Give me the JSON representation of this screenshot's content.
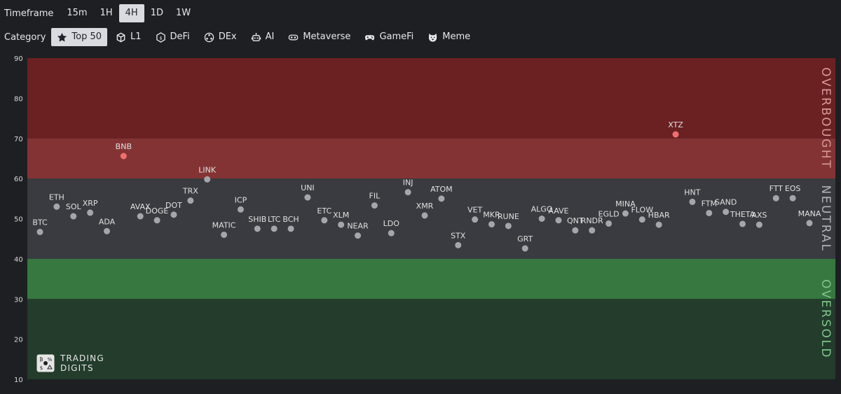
{
  "toolbar": {
    "timeframe_label": "Timeframe",
    "timeframes": [
      "15m",
      "1H",
      "4H",
      "1D",
      "1W"
    ],
    "active_timeframe": "4H",
    "category_label": "Category",
    "categories": [
      {
        "label": "Top 50",
        "icon": "star-icon",
        "active": true
      },
      {
        "label": "L1",
        "icon": "cube-icon",
        "active": false
      },
      {
        "label": "DeFi",
        "icon": "defi-icon",
        "active": false
      },
      {
        "label": "DEx",
        "icon": "dex-icon",
        "active": false
      },
      {
        "label": "AI",
        "icon": "robot-icon",
        "active": false
      },
      {
        "label": "Metaverse",
        "icon": "vr-headset-icon",
        "active": false
      },
      {
        "label": "GameFi",
        "icon": "gamepad-icon",
        "active": false
      },
      {
        "label": "Meme",
        "icon": "doge-icon",
        "active": false
      }
    ]
  },
  "logo": {
    "line1": "TRADING",
    "line2": "DIGITS"
  },
  "colors": {
    "overbought_strong": "#6b2022",
    "overbought_light": "#843334",
    "neutral": "#393b40",
    "oversold_light": "#367840",
    "oversold_strong": "#233c2c",
    "dot_neutral": "#a5a6ab",
    "dot_overbought": "#f07070"
  },
  "chart_data": {
    "type": "scatter",
    "ylim": [
      10,
      90
    ],
    "yticks": [
      90,
      80,
      70,
      60,
      50,
      40,
      30,
      20,
      10
    ],
    "zones": [
      {
        "label": "OVERBOUGHT",
        "from": 60,
        "to": 90
      },
      {
        "label": "NEUTRAL",
        "from": 40,
        "to": 60
      },
      {
        "label": "OVERSOLD",
        "from": 10,
        "to": 40
      }
    ],
    "points": [
      {
        "name": "BTC",
        "y": 46.7
      },
      {
        "name": "ETH",
        "y": 53.0
      },
      {
        "name": "SOL",
        "y": 50.6
      },
      {
        "name": "XRP",
        "y": 51.5
      },
      {
        "name": "ADA",
        "y": 46.9
      },
      {
        "name": "BNB",
        "y": 65.6
      },
      {
        "name": "AVAX",
        "y": 50.6
      },
      {
        "name": "DOGE",
        "y": 49.6
      },
      {
        "name": "DOT",
        "y": 51.0
      },
      {
        "name": "TRX",
        "y": 54.5
      },
      {
        "name": "LINK",
        "y": 59.8
      },
      {
        "name": "MATIC",
        "y": 46.0
      },
      {
        "name": "ICP",
        "y": 52.3
      },
      {
        "name": "SHIB",
        "y": 47.5
      },
      {
        "name": "LTC",
        "y": 47.5
      },
      {
        "name": "BCH",
        "y": 47.5
      },
      {
        "name": "UNI",
        "y": 55.3
      },
      {
        "name": "ETC",
        "y": 49.6
      },
      {
        "name": "XLM",
        "y": 48.5
      },
      {
        "name": "NEAR",
        "y": 45.8
      },
      {
        "name": "FIL",
        "y": 53.3
      },
      {
        "name": "LDO",
        "y": 46.4
      },
      {
        "name": "INJ",
        "y": 56.6
      },
      {
        "name": "XMR",
        "y": 50.8
      },
      {
        "name": "ATOM",
        "y": 55.0
      },
      {
        "name": "STX",
        "y": 43.4
      },
      {
        "name": "VET",
        "y": 49.8
      },
      {
        "name": "MKR",
        "y": 48.6
      },
      {
        "name": "RUNE",
        "y": 48.2
      },
      {
        "name": "GRT",
        "y": 42.6
      },
      {
        "name": "ALGO",
        "y": 50.0
      },
      {
        "name": "AAVE",
        "y": 49.6
      },
      {
        "name": "QNT",
        "y": 47.1
      },
      {
        "name": "RNDR",
        "y": 47.1
      },
      {
        "name": "EGLD",
        "y": 48.8
      },
      {
        "name": "MINA",
        "y": 51.3
      },
      {
        "name": "FLOW",
        "y": 49.8
      },
      {
        "name": "HBAR",
        "y": 48.5
      },
      {
        "name": "XTZ",
        "y": 71.0
      },
      {
        "name": "HNT",
        "y": 54.2
      },
      {
        "name": "FTM",
        "y": 51.4
      },
      {
        "name": "SAND",
        "y": 51.7
      },
      {
        "name": "THETA",
        "y": 48.7
      },
      {
        "name": "AXS",
        "y": 48.5
      },
      {
        "name": "FTT",
        "y": 55.1
      },
      {
        "name": "EOS",
        "y": 55.1
      },
      {
        "name": "MANA",
        "y": 48.9
      }
    ]
  }
}
